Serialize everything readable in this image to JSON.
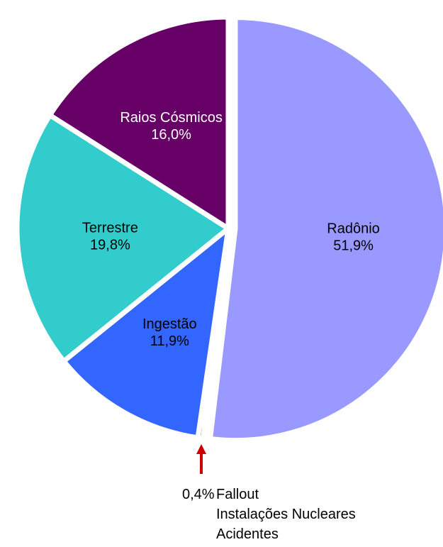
{
  "chart_data": {
    "type": "pie",
    "title": "",
    "legend": "none",
    "slices": [
      {
        "label": "Radônio",
        "value": 51.9,
        "value_text": "51,9%",
        "color": "#9999ff",
        "label_color": "#000000",
        "explode": true
      },
      {
        "label": "Fallout / Instalações Nucleares / Acidentes",
        "value": 0.4,
        "value_text": "0,4%",
        "color": "#cc0000",
        "label_color": "#000000",
        "explode": false
      },
      {
        "label": "Ingestão",
        "value": 11.9,
        "value_text": "11,9%",
        "color": "#3366ff",
        "label_color": "#000000",
        "explode": false
      },
      {
        "label": "Terrestre",
        "value": 19.8,
        "value_text": "19,8%",
        "color": "#33cccc",
        "label_color": "#000000",
        "explode": false
      },
      {
        "label": "Raios Cósmicos",
        "value": 16.0,
        "value_text": "16,0%",
        "color": "#660066",
        "label_color": "#ffffff",
        "explode": false
      }
    ],
    "annotation": {
      "value_text": "0,4%",
      "lines": [
        "Fallout",
        "Instalações Nucleares",
        "Acidentes"
      ],
      "arrow_color": "#cc0000"
    }
  }
}
